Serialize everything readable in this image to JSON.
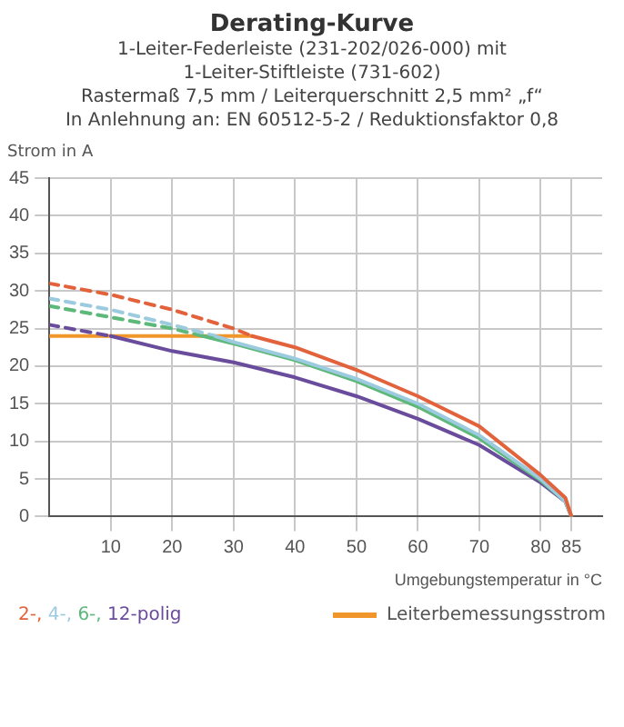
{
  "chart_data": {
    "type": "line",
    "title": "Derating-Kurve",
    "subtitle": "1-Leiter-Federleiste (231-202/026-000) mit\n1-Leiter-Stiftleiste (731-602)\nRastermaß 7,5 mm / Leiterquerschnitt 2,5 mm² „f“\nIn Anlehnung an: EN 60512-5-2 / Reduktionsfaktor 0,8",
    "xlabel": "Umgebungstemperatur in °C",
    "ylabel": "Strom in A",
    "xlim": [
      0,
      90
    ],
    "xticks": [
      10,
      20,
      30,
      40,
      50,
      60,
      70,
      80,
      85
    ],
    "ylim": [
      0,
      45
    ],
    "yticks": [
      0,
      5,
      10,
      15,
      20,
      25,
      30,
      35,
      40,
      45
    ],
    "grid": true,
    "legend": "bottom",
    "marker": "none",
    "series": [
      {
        "name": "2-,",
        "color": "#e2623c",
        "line_style": "solid",
        "x": [
          33,
          40,
          50,
          60,
          70,
          80,
          84,
          85
        ],
        "values": [
          24,
          22.5,
          19.5,
          16,
          12,
          5.5,
          2.5,
          0
        ]
      },
      {
        "name": "4-,",
        "color": "#9ccbe0",
        "line_style": "solid",
        "x": [
          27,
          30,
          40,
          50,
          60,
          70,
          80,
          84,
          85
        ],
        "values": [
          24,
          23.2,
          21,
          18.3,
          15,
          10.8,
          5,
          2,
          0
        ]
      },
      {
        "name": "6-,",
        "color": "#5db87a",
        "line_style": "solid",
        "x": [
          25,
          30,
          40,
          50,
          60,
          70,
          80,
          84,
          85
        ],
        "values": [
          24,
          23,
          20.8,
          18,
          14.6,
          10.4,
          4.8,
          2,
          0
        ]
      },
      {
        "name": "12-polig",
        "color": "#6a4c9c",
        "line_style": "solid",
        "x": [
          10,
          20,
          30,
          40,
          50,
          60,
          70,
          80,
          84,
          85
        ],
        "values": [
          24,
          22,
          20.5,
          18.5,
          16,
          13,
          9.5,
          4.5,
          2,
          0
        ]
      },
      {
        "color": "#e2623c",
        "line_style": "dashed",
        "x": [
          0,
          10,
          20,
          30,
          33
        ],
        "values": [
          31,
          29.5,
          27.5,
          25,
          24
        ]
      },
      {
        "color": "#9ccbe0",
        "line_style": "dashed",
        "x": [
          0,
          10,
          20,
          27
        ],
        "values": [
          29,
          27.5,
          25.5,
          24
        ]
      },
      {
        "color": "#5db87a",
        "line_style": "dashed",
        "x": [
          0,
          10,
          20,
          25
        ],
        "values": [
          28,
          26.5,
          25,
          24
        ]
      },
      {
        "color": "#6a4c9c",
        "line_style": "dashed",
        "x": [
          0,
          10
        ],
        "values": [
          25.5,
          24
        ]
      },
      {
        "name": "Leiterbemessungsstrom",
        "color": "#f0962a",
        "line_style": "solid",
        "x": [
          0,
          33
        ],
        "values": [
          24,
          24
        ]
      }
    ]
  }
}
